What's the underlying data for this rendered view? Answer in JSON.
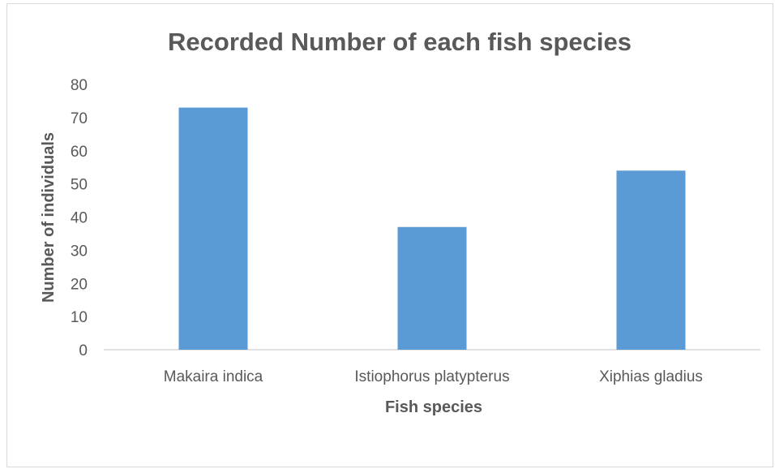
{
  "chart_data": {
    "type": "bar",
    "title": "Recorded Number of each fish species",
    "xlabel": "Fish species",
    "ylabel": "Number of individuals",
    "categories": [
      "Makaira indica",
      "Istiophorus platypterus",
      "Xiphias gladius"
    ],
    "values": [
      73,
      37,
      54
    ],
    "ylim": [
      0,
      80
    ],
    "yticks": [
      "0",
      "10",
      "20",
      "30",
      "40",
      "50",
      "60",
      "70",
      "80"
    ],
    "grid": false,
    "legend": "none",
    "bar_color": "#5b9bd5"
  }
}
